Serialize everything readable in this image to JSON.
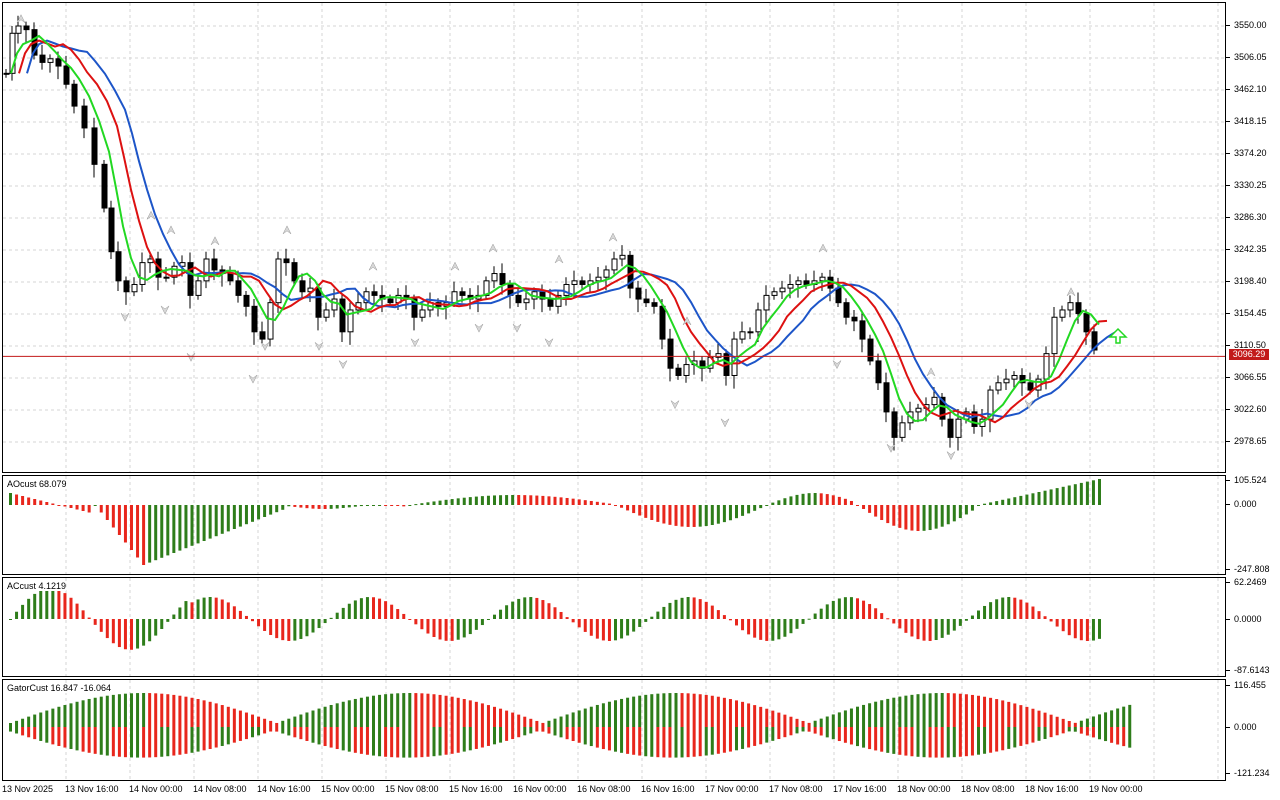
{
  "colors": {
    "bull": "#2e7d1a",
    "bear": "#e8261c",
    "ma_green": "#22d822",
    "ma_red": "#dd1111",
    "ma_blue": "#1d55c8",
    "current_line": "#c21a1a",
    "grid": "#d6d6d6"
  },
  "main_chart": {
    "y_ticks": [
      "3550.00",
      "3506.05",
      "3462.10",
      "3418.15",
      "3374.20",
      "3330.25",
      "3286.30",
      "3242.35",
      "3198.40",
      "3154.45",
      "3110.50",
      "3066.55",
      "3022.60",
      "2978.65"
    ],
    "current_price_label": "3096.29",
    "current_price": 3096.29,
    "signal_icon": "up-arrow-outline-icon",
    "fractal_icon": "fractal-arrow-icon"
  },
  "ao_panel": {
    "label": "AOcust 68.079",
    "y_ticks": [
      "105.524",
      "0.000",
      "-247.808"
    ]
  },
  "ac_panel": {
    "label": "ACcust 4.1219",
    "y_ticks": [
      "62.2469",
      "0.0000",
      "-87.6143"
    ]
  },
  "gator_panel": {
    "label": "GatorCust 16.847 -16.064",
    "y_ticks": [
      "116.455",
      "0.000",
      "-121.234"
    ]
  },
  "x_axis": {
    "labels": [
      "13 Nov 2025",
      "13 Nov 16:00",
      "14 Nov 00:00",
      "14 Nov 08:00",
      "14 Nov 16:00",
      "15 Nov 00:00",
      "15 Nov 08:00",
      "15 Nov 16:00",
      "16 Nov 00:00",
      "16 Nov 08:00",
      "16 Nov 16:00",
      "17 Nov 00:00",
      "17 Nov 08:00",
      "17 Nov 16:00",
      "18 Nov 00:00",
      "18 Nov 08:00",
      "18 Nov 16:00",
      "19 Nov 00:00"
    ]
  }
}
